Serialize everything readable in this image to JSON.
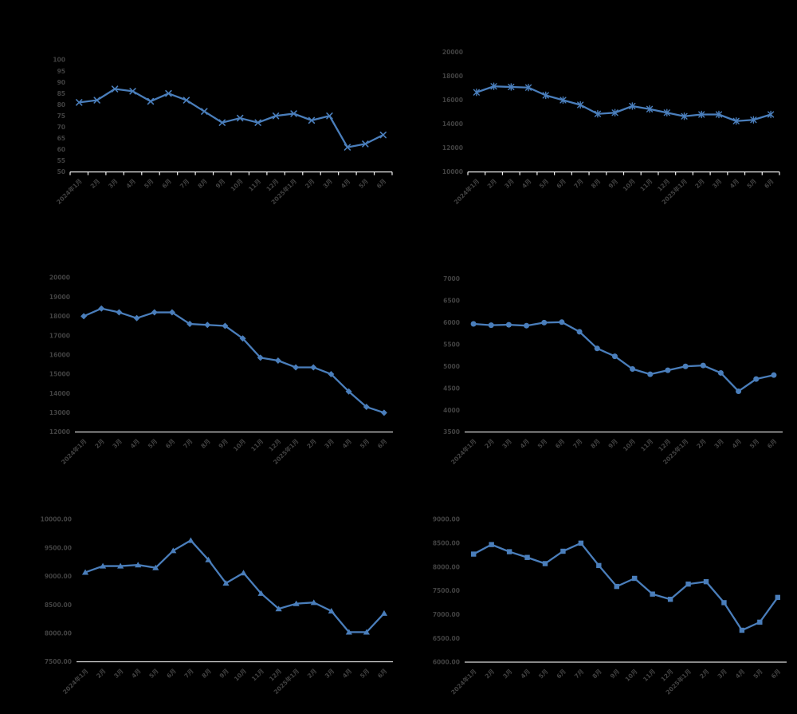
{
  "page": {
    "background": "#000000"
  },
  "shared": {
    "categories": [
      "2024年1月",
      "2月",
      "3月",
      "4月",
      "5月",
      "6月",
      "7月",
      "8月",
      "9月",
      "10月",
      "11月",
      "12月",
      "2025年1月",
      "2月",
      "3月",
      "4月",
      "5月",
      "6月"
    ],
    "line_color": "#4A7EBB",
    "label_color": "#414141",
    "top_axis_color": "#F5F5F5",
    "bottom_axis_color": "#D9D9D9"
  },
  "chart_data": [
    {
      "name": "chart-top-left",
      "type": "line",
      "marker": "x",
      "title": "",
      "xlabel": "",
      "ylabel": "",
      "legend": "none",
      "grid": "off",
      "ylim": [
        50,
        100
      ],
      "ytick_step": 5,
      "y_ticks": [
        "50",
        "55",
        "60",
        "65",
        "70",
        "75",
        "80",
        "85",
        "90",
        "95",
        "100"
      ],
      "x": [
        "2024年1月",
        "2月",
        "3月",
        "4月",
        "5月",
        "6月",
        "7月",
        "8月",
        "9月",
        "10月",
        "11月",
        "12月",
        "2025年1月",
        "2月",
        "3月",
        "4月",
        "5月",
        "6月"
      ],
      "values": [
        81,
        82,
        87,
        86,
        81.5,
        85,
        82,
        77,
        72,
        74,
        72,
        75,
        76,
        73,
        75,
        61,
        62.5,
        66.5
      ],
      "x_axis_ticks": true
    },
    {
      "name": "chart-top-right",
      "type": "line",
      "marker": "star",
      "title": "",
      "xlabel": "",
      "ylabel": "",
      "legend": "none",
      "grid": "off",
      "ylim": [
        10000,
        20000
      ],
      "ytick_step": 2000,
      "y_ticks": [
        "10000",
        "12000",
        "14000",
        "16000",
        "18000",
        "20000"
      ],
      "x": [
        "2024年1月",
        "2月",
        "3月",
        "4月",
        "5月",
        "6月",
        "7月",
        "8月",
        "9月",
        "10月",
        "11月",
        "12月",
        "2025年1月",
        "2月",
        "3月",
        "4月",
        "5月",
        "6月"
      ],
      "values": [
        16650,
        17150,
        17100,
        17050,
        16400,
        16000,
        15600,
        14850,
        14950,
        15500,
        15250,
        14950,
        14650,
        14800,
        14800,
        14250,
        14350,
        14800
      ],
      "x_axis_ticks": true
    },
    {
      "name": "chart-middle-left",
      "type": "line",
      "marker": "diamond",
      "title": "",
      "xlabel": "",
      "ylabel": "",
      "legend": "none",
      "grid": "off",
      "ylim": [
        12000,
        20000
      ],
      "ytick_step": 1000,
      "y_ticks": [
        "12000",
        "13000",
        "14000",
        "15000",
        "16000",
        "17000",
        "18000",
        "19000",
        "20000"
      ],
      "x": [
        "2024年1月",
        "2月",
        "3月",
        "4月",
        "5月",
        "6月",
        "7月",
        "8月",
        "9月",
        "10月",
        "11月",
        "12月",
        "2025年1月",
        "2月",
        "3月",
        "4月",
        "5月",
        "6月"
      ],
      "values": [
        18000,
        18400,
        18200,
        17900,
        18200,
        18200,
        17600,
        17550,
        17500,
        16850,
        15850,
        15700,
        15350,
        15350,
        15000,
        14100,
        13300,
        13000
      ],
      "x_axis_ticks": false
    },
    {
      "name": "chart-middle-right",
      "type": "line",
      "marker": "circle",
      "title": "",
      "xlabel": "",
      "ylabel": "",
      "legend": "none",
      "grid": "off",
      "ylim": [
        3500,
        7000
      ],
      "ytick_step": 500,
      "y_ticks": [
        "3500",
        "4000",
        "4500",
        "5000",
        "5500",
        "6000",
        "6500",
        "7000"
      ],
      "x": [
        "2024年1月",
        "2月",
        "3月",
        "4月",
        "5月",
        "6月",
        "7月",
        "8月",
        "9月",
        "10月",
        "11月",
        "12月",
        "2025年1月",
        "2月",
        "3月",
        "4月",
        "5月",
        "6月"
      ],
      "values": [
        5970,
        5940,
        5950,
        5930,
        6000,
        6010,
        5790,
        5410,
        5230,
        4940,
        4820,
        4910,
        5000,
        5020,
        4850,
        4430,
        4710,
        4800
      ],
      "x_axis_ticks": false
    },
    {
      "name": "chart-bottom-left",
      "type": "line",
      "marker": "triangle",
      "title": "",
      "xlabel": "",
      "ylabel": "",
      "legend": "none",
      "grid": "off",
      "ylim": [
        7500,
        10000
      ],
      "ytick_step": 500,
      "y_ticks": [
        "7500.00",
        "8000.00",
        "8500.00",
        "9000.00",
        "9500.00",
        "10000.00"
      ],
      "x": [
        "2024年1月",
        "2月",
        "3月",
        "4月",
        "5月",
        "6月",
        "7月",
        "8月",
        "9月",
        "10月",
        "11月",
        "12月",
        "2025年1月",
        "2月",
        "3月",
        "4月",
        "5月",
        "6月"
      ],
      "values": [
        9070,
        9180,
        9180,
        9200,
        9150,
        9450,
        9630,
        9290,
        8880,
        9060,
        8700,
        8430,
        8520,
        8540,
        8390,
        8020,
        8020,
        8350
      ],
      "x_axis_ticks": false
    },
    {
      "name": "chart-bottom-right",
      "type": "line",
      "marker": "square",
      "title": "",
      "xlabel": "",
      "ylabel": "",
      "legend": "none",
      "grid": "off",
      "ylim": [
        6000,
        9000
      ],
      "ytick_step": 500,
      "y_ticks": [
        "6000.00",
        "6500.00",
        "7000.00",
        "7500.00",
        "8000.00",
        "8500.00",
        "9000.00"
      ],
      "x": [
        "2024年1月",
        "2月",
        "3月",
        "4月",
        "5月",
        "6月",
        "7月",
        "8月",
        "9月",
        "10月",
        "11月",
        "12月",
        "2025年1月",
        "2月",
        "3月",
        "4月",
        "5月",
        "6月"
      ],
      "values": [
        8270,
        8470,
        8320,
        8200,
        8070,
        8330,
        8500,
        8030,
        7590,
        7760,
        7430,
        7320,
        7640,
        7690,
        7250,
        6670,
        6840,
        7360
      ],
      "x_axis_ticks": false
    }
  ]
}
